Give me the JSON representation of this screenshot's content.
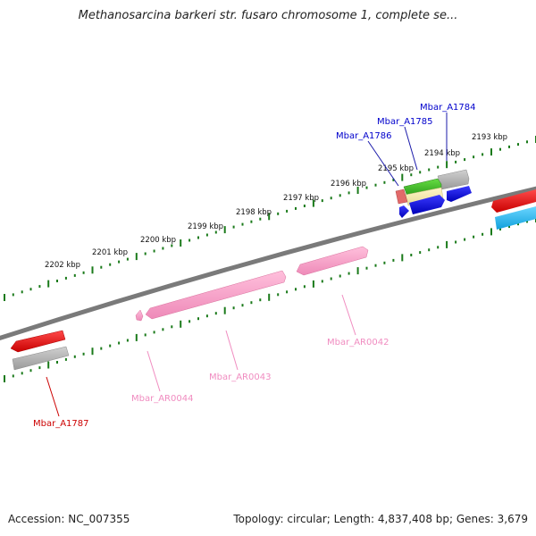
{
  "title": "Methanosarcina barkeri str. fusaro chromosome 1, complete se...",
  "footer": {
    "accession": "Accession: NC_007355",
    "summary": "Topology: circular; Length: 4,837,408 bp; Genes: 3,679"
  },
  "colors": {
    "backbone": "#7f7f7f",
    "tick": "#1a7a1a",
    "forward_label": "#0000cc",
    "reverse_label": "#f08cc0",
    "other_label": "#cc0000"
  },
  "kbp_ticks": [
    "2193 kbp",
    "2194 kbp",
    "2195 kbp",
    "2196 kbp",
    "2197 kbp",
    "2198 kbp",
    "2199 kbp",
    "2200 kbp",
    "2201 kbp",
    "2202 kbp"
  ],
  "gene_labels": [
    "Mbar_A1784",
    "Mbar_A1785",
    "Mbar_A1786",
    "Mbar_AR0042",
    "Mbar_AR0043",
    "Mbar_AR0044",
    "Mbar_A1787"
  ]
}
